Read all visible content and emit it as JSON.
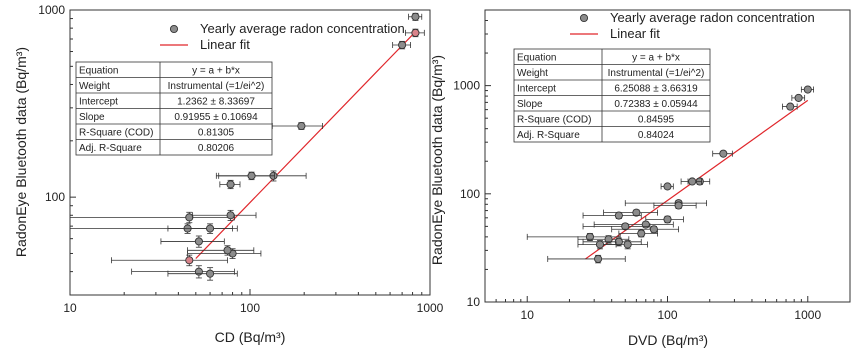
{
  "chart_data": [
    {
      "type": "scatter",
      "xlabel": "CD (Bq/m³)",
      "ylabel": "RadonEye Bluetooth data (Bq/m³)",
      "xscale": "log",
      "yscale": "log",
      "xlim": [
        10,
        1000
      ],
      "ylim": [
        30,
        1000
      ],
      "xticks": [
        {
          "v": 10,
          "label": "10"
        },
        {
          "v": 100,
          "label": "100"
        },
        {
          "v": 1000,
          "label": "1000"
        }
      ],
      "yticks": [
        {
          "v": 100,
          "label": "100"
        },
        {
          "v": 1000,
          "label": "1000"
        }
      ],
      "legend": {
        "position": "top-right",
        "entries": [
          {
            "label": "Yearly average radon concentration",
            "kind": "marker"
          },
          {
            "label": "Linear fit",
            "kind": "line"
          }
        ]
      },
      "stats_table": [
        [
          "Equation",
          "y = a + b*x"
        ],
        [
          "Weight",
          "Instrumental (=1/ei^2)"
        ],
        [
          "Intercept",
          "1.2362 ± 8.33697"
        ],
        [
          "Slope",
          "0.91955 ± 0.10694"
        ],
        [
          "R-Square (COD)",
          "0.81305"
        ],
        [
          "Adj. R-Square",
          "0.80206"
        ]
      ],
      "fit": {
        "x": [
          50,
          830
        ],
        "y": [
          47,
          765
        ],
        "color": "#e0262b"
      },
      "series": [
        {
          "marker_color": "#8c8c8c",
          "highlight_color": "#d9838a",
          "points": [
            {
              "x": 830,
              "y": 920,
              "xerr": 70,
              "yerr": 40
            },
            {
              "x": 830,
              "y": 755,
              "xerr": 100,
              "yerr": 35,
              "highlight": true
            },
            {
              "x": 700,
              "y": 650,
              "xerr": 80,
              "yerr": 30
            },
            {
              "x": 193,
              "y": 240,
              "xerr": 60,
              "yerr": 10
            },
            {
              "x": 135,
              "y": 130,
              "xerr": 70,
              "yerr": 8
            },
            {
              "x": 102,
              "y": 130,
              "xerr": 35,
              "yerr": 6
            },
            {
              "x": 78,
              "y": 117,
              "xerr": 10,
              "yerr": 6
            },
            {
              "x": 46,
              "y": 78,
              "xerr": 36,
              "yerr": 5
            },
            {
              "x": 78,
              "y": 80,
              "xerr": 30,
              "yerr": 5
            },
            {
              "x": 45,
              "y": 68,
              "xerr": 35,
              "yerr": 4
            },
            {
              "x": 60,
              "y": 68,
              "xerr": 25,
              "yerr": 4
            },
            {
              "x": 52,
              "y": 58,
              "xerr": 20,
              "yerr": 4
            },
            {
              "x": 80,
              "y": 50,
              "xerr": 35,
              "yerr": 3
            },
            {
              "x": 75,
              "y": 52,
              "xerr": 30,
              "yerr": 3
            },
            {
              "x": 46,
              "y": 46,
              "xerr": 29,
              "yerr": 3,
              "highlight": true
            },
            {
              "x": 52,
              "y": 40,
              "xerr": 30,
              "yerr": 3
            },
            {
              "x": 60,
              "y": 39,
              "xerr": 25,
              "yerr": 3
            }
          ]
        }
      ]
    },
    {
      "type": "scatter",
      "xlabel": "DVD (Bq/m³)",
      "ylabel": "RadonEye Bluetooth data (Bq/m³)",
      "xscale": "log",
      "yscale": "log",
      "xlim": [
        5,
        2000
      ],
      "ylim": [
        10,
        5000
      ],
      "xticks": [
        {
          "v": 10,
          "label": "10"
        },
        {
          "v": 100,
          "label": "100"
        },
        {
          "v": 1000,
          "label": "1000"
        }
      ],
      "yticks": [
        {
          "v": 10,
          "label": "10"
        },
        {
          "v": 100,
          "label": "100"
        },
        {
          "v": 1000,
          "label": "1000"
        }
      ],
      "legend": {
        "position": "top-right",
        "entries": [
          {
            "label": "Yearly average radon concentration",
            "kind": "marker"
          },
          {
            "label": "Linear fit",
            "kind": "line"
          }
        ]
      },
      "stats_table": [
        [
          "Equation",
          "y = a + b*x"
        ],
        [
          "Weight",
          "Instrumental (=1/ei^2)"
        ],
        [
          "Intercept",
          "6.25088 ± 3.66319"
        ],
        [
          "Slope",
          "0.72383 ± 0.05944"
        ],
        [
          "R-Square (COD)",
          "0.84595"
        ],
        [
          "Adj. R-Square",
          "0.84024"
        ]
      ],
      "fit": {
        "x": [
          26,
          1000
        ],
        "y": [
          25,
          730
        ],
        "color": "#e0262b"
      },
      "series": [
        {
          "marker_color": "#8c8c8c",
          "highlight_color": "#d9838a",
          "points": [
            {
              "x": 1000,
              "y": 920,
              "xerr": 100,
              "yerr": 40
            },
            {
              "x": 860,
              "y": 770,
              "xerr": 90,
              "yerr": 35
            },
            {
              "x": 750,
              "y": 640,
              "xerr": 90,
              "yerr": 30
            },
            {
              "x": 250,
              "y": 235,
              "xerr": 40,
              "yerr": 10
            },
            {
              "x": 170,
              "y": 130,
              "xerr": 30,
              "yerr": 8
            },
            {
              "x": 150,
              "y": 130,
              "xerr": 25,
              "yerr": 6
            },
            {
              "x": 100,
              "y": 117,
              "xerr": 10,
              "yerr": 6
            },
            {
              "x": 120,
              "y": 82,
              "xerr": 70,
              "yerr": 5
            },
            {
              "x": 120,
              "y": 78,
              "xerr": 40,
              "yerr": 5
            },
            {
              "x": 60,
              "y": 67,
              "xerr": 25,
              "yerr": 4
            },
            {
              "x": 45,
              "y": 63,
              "xerr": 20,
              "yerr": 4
            },
            {
              "x": 100,
              "y": 58,
              "xerr": 30,
              "yerr": 4
            },
            {
              "x": 70,
              "y": 52,
              "xerr": 40,
              "yerr": 3
            },
            {
              "x": 50,
              "y": 50,
              "xerr": 25,
              "yerr": 3
            },
            {
              "x": 80,
              "y": 47,
              "xerr": 40,
              "yerr": 3
            },
            {
              "x": 65,
              "y": 43,
              "xerr": 20,
              "yerr": 3
            },
            {
              "x": 28,
              "y": 40,
              "xerr": 18,
              "yerr": 3
            },
            {
              "x": 38,
              "y": 38,
              "xerr": 15,
              "yerr": 3
            },
            {
              "x": 45,
              "y": 36,
              "xerr": 20,
              "yerr": 3
            },
            {
              "x": 52,
              "y": 34,
              "xerr": 20,
              "yerr": 3
            },
            {
              "x": 33,
              "y": 34,
              "xerr": 10,
              "yerr": 3
            },
            {
              "x": 32,
              "y": 25,
              "xerr": 18,
              "yerr": 2
            }
          ]
        }
      ]
    }
  ]
}
